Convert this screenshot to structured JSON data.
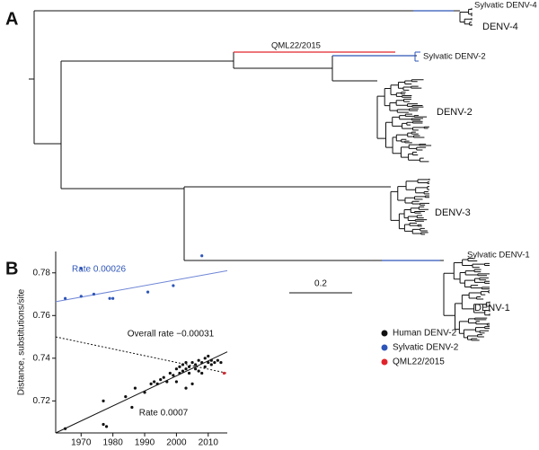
{
  "panels": [
    "A",
    "B"
  ],
  "tree": {
    "labels": [
      "Sylvatic DENV-4",
      "DENV-4",
      "QML22/2015",
      "Sylvatic DENV-2",
      "DENV-2",
      "DENV-3",
      "Sylvatic DENV-1",
      "DENV-1"
    ],
    "scale_label": "0.2"
  },
  "chart_data": {
    "type": "scatter",
    "y_label": "Distance, substitutions/site",
    "xlim": [
      1962,
      2016
    ],
    "xticks": [
      1970,
      1980,
      1990,
      2000,
      2010
    ],
    "ylim": [
      0.705,
      0.79
    ],
    "yticks": [
      0.72,
      0.74,
      0.76,
      0.78
    ],
    "series": [
      {
        "name": "Human DENV-2",
        "color": "#111111",
        "x": [
          1965,
          1977,
          1978,
          1977,
          1984,
          1986,
          1987,
          1990,
          1992,
          1993,
          1994,
          1995,
          1996,
          1997,
          1998,
          1999,
          2000,
          2000,
          2001,
          2001,
          2002,
          2002,
          2003,
          2003,
          2004,
          2004,
          2005,
          2005,
          2006,
          2006,
          2007,
          2007,
          2008,
          2008,
          2009,
          2009,
          2010,
          2010,
          2011,
          2011,
          2012,
          2013,
          2014,
          2003
        ],
        "values": [
          0.707,
          0.709,
          0.708,
          0.72,
          0.722,
          0.717,
          0.726,
          0.724,
          0.728,
          0.729,
          0.728,
          0.73,
          0.731,
          0.729,
          0.733,
          0.732,
          0.735,
          0.729,
          0.736,
          0.733,
          0.737,
          0.734,
          0.735,
          0.738,
          0.736,
          0.733,
          0.738,
          0.728,
          0.737,
          0.735,
          0.739,
          0.734,
          0.738,
          0.733,
          0.74,
          0.736,
          0.741,
          0.738,
          0.739,
          0.737,
          0.738,
          0.739,
          0.738,
          0.726
        ]
      },
      {
        "name": "Sylvatic DENV-2",
        "color": "#2e55b8",
        "x": [
          1965,
          1970,
          1970,
          1974,
          1979,
          1980,
          1991,
          1999,
          2008
        ],
        "values": [
          0.768,
          0.782,
          0.769,
          0.77,
          0.768,
          0.768,
          0.771,
          0.774,
          0.788
        ]
      },
      {
        "name": "QML22/2015",
        "color": "#e0242b",
        "x": [
          2015
        ],
        "values": [
          0.733
        ]
      }
    ],
    "fit_lines": [
      {
        "color": "#6f86d6",
        "style": "solid",
        "x": [
          1962,
          2016
        ],
        "y": [
          0.7665,
          0.781
        ]
      },
      {
        "color": "#111111",
        "style": "solid",
        "x": [
          1962,
          2016
        ],
        "y": [
          0.705,
          0.743
        ]
      },
      {
        "color": "#111111",
        "style": "dashed",
        "x": [
          1962,
          2016
        ],
        "y": [
          0.75,
          0.733
        ]
      }
    ],
    "annotations": [
      {
        "text": "Rate 0.00026",
        "color": "#2e55b8"
      },
      {
        "text": "Overall rate −0.00031",
        "color": "#111111"
      },
      {
        "text": "Rate 0.0007",
        "color": "#111111"
      }
    ],
    "legend": "right"
  }
}
